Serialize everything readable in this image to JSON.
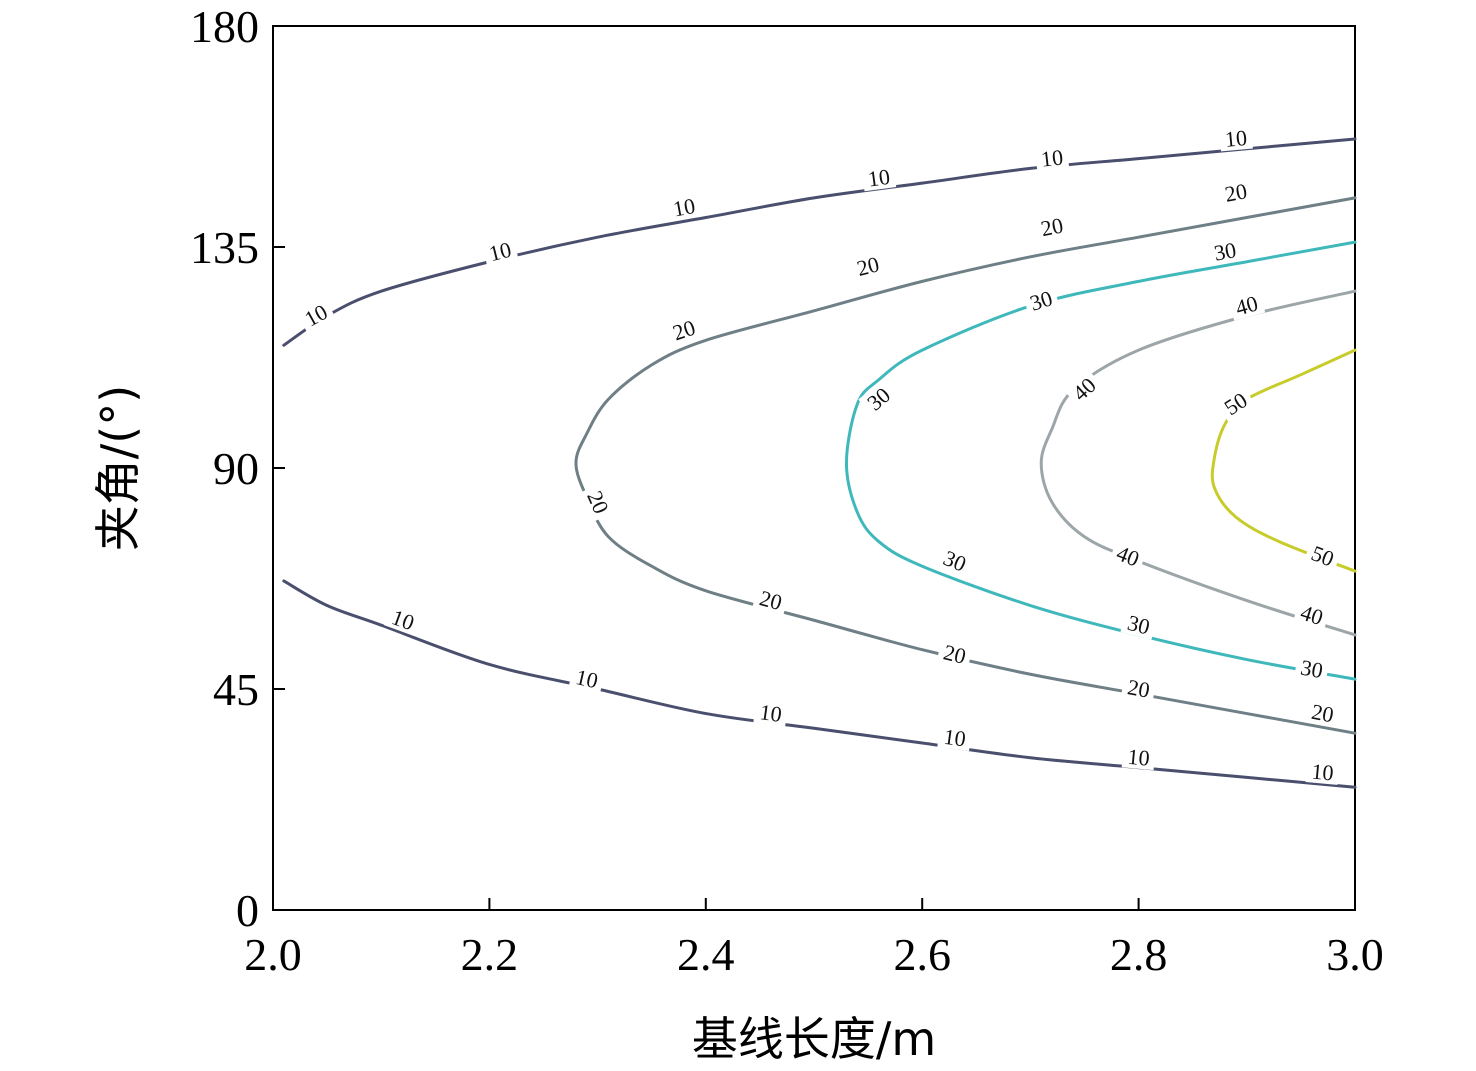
{
  "chart_data": {
    "type": "contour",
    "xlabel": "基线长度/m",
    "ylabel": "夹角/(°)",
    "xlim": [
      2.0,
      3.0
    ],
    "ylim": [
      0,
      180
    ],
    "x_ticks": [
      "2.0",
      "2.2",
      "2.4",
      "2.6",
      "2.8",
      "3.0"
    ],
    "y_ticks": [
      "0",
      "45",
      "90",
      "135",
      "180"
    ],
    "grid": false,
    "contours": [
      {
        "level": "10",
        "color": "#4a4f6e",
        "segments": [
          {
            "part": "upper",
            "points": [
              [
                2.01,
                115
              ],
              [
                2.05,
                121
              ],
              [
                2.1,
                126
              ],
              [
                2.2,
                132
              ],
              [
                2.3,
                137
              ],
              [
                2.4,
                141
              ],
              [
                2.5,
                145
              ],
              [
                2.6,
                148
              ],
              [
                2.7,
                151
              ],
              [
                2.8,
                153
              ],
              [
                2.9,
                155
              ],
              [
                3.0,
                157
              ]
            ],
            "labels": [
              [
                2.04,
                121
              ],
              [
                2.21,
                134
              ],
              [
                2.38,
                143
              ],
              [
                2.56,
                149
              ],
              [
                2.72,
                153
              ],
              [
                2.89,
                157
              ]
            ]
          },
          {
            "part": "lower",
            "points": [
              [
                2.01,
                67
              ],
              [
                2.05,
                62
              ],
              [
                2.1,
                58
              ],
              [
                2.2,
                50
              ],
              [
                2.3,
                45
              ],
              [
                2.4,
                40
              ],
              [
                2.5,
                37
              ],
              [
                2.6,
                34
              ],
              [
                2.7,
                31
              ],
              [
                2.8,
                29
              ],
              [
                2.9,
                27
              ],
              [
                3.0,
                25
              ]
            ],
            "labels": [
              [
                2.12,
                59
              ],
              [
                2.29,
                47
              ],
              [
                2.46,
                40
              ],
              [
                2.63,
                35
              ],
              [
                2.8,
                31
              ],
              [
                2.97,
                28
              ]
            ]
          }
        ]
      },
      {
        "level": "20",
        "color": "#6e7f86",
        "segments": [
          {
            "part": "main",
            "points": [
              [
                3.0,
                145
              ],
              [
                2.9,
                141
              ],
              [
                2.8,
                137
              ],
              [
                2.7,
                133
              ],
              [
                2.6,
                128
              ],
              [
                2.5,
                122
              ],
              [
                2.4,
                116
              ],
              [
                2.35,
                111
              ],
              [
                2.31,
                104
              ],
              [
                2.29,
                97
              ],
              [
                2.28,
                91
              ],
              [
                2.29,
                84
              ],
              [
                2.31,
                76
              ],
              [
                2.35,
                70
              ],
              [
                2.4,
                65
              ],
              [
                2.5,
                59
              ],
              [
                2.6,
                53
              ],
              [
                2.7,
                48
              ],
              [
                2.8,
                44
              ],
              [
                2.9,
                40
              ],
              [
                3.0,
                36
              ]
            ],
            "labels": [
              [
                2.89,
                146
              ],
              [
                2.72,
                139
              ],
              [
                2.55,
                131
              ],
              [
                2.38,
                118
              ],
              [
                2.3,
                83
              ],
              [
                2.46,
                63
              ],
              [
                2.63,
                52
              ],
              [
                2.8,
                45
              ],
              [
                2.97,
                40
              ]
            ]
          }
        ]
      },
      {
        "level": "30",
        "color": "#3fb8bb",
        "segments": [
          {
            "part": "main",
            "points": [
              [
                3.0,
                136
              ],
              [
                2.9,
                132
              ],
              [
                2.8,
                128
              ],
              [
                2.7,
                123
              ],
              [
                2.6,
                114
              ],
              [
                2.56,
                108
              ],
              [
                2.54,
                103
              ],
              [
                2.53,
                91
              ],
              [
                2.54,
                81
              ],
              [
                2.56,
                75
              ],
              [
                2.6,
                70
              ],
              [
                2.7,
                62
              ],
              [
                2.8,
                56
              ],
              [
                2.9,
                51
              ],
              [
                3.0,
                47
              ]
            ],
            "labels": [
              [
                2.88,
                134
              ],
              [
                2.71,
                124
              ],
              [
                2.56,
                104
              ],
              [
                2.63,
                71
              ],
              [
                2.8,
                58
              ],
              [
                2.96,
                49
              ]
            ]
          }
        ]
      },
      {
        "level": "40",
        "color": "#9ca5a8",
        "segments": [
          {
            "part": "main",
            "points": [
              [
                3.0,
                126
              ],
              [
                2.9,
                121
              ],
              [
                2.8,
                114
              ],
              [
                2.74,
                106
              ],
              [
                2.72,
                98
              ],
              [
                2.71,
                91
              ],
              [
                2.72,
                83
              ],
              [
                2.75,
                76
              ],
              [
                2.8,
                71
              ],
              [
                2.9,
                63
              ],
              [
                3.0,
                56
              ]
            ],
            "labels": [
              [
                2.9,
                123
              ],
              [
                2.75,
                106
              ],
              [
                2.79,
                72
              ],
              [
                2.96,
                60
              ]
            ]
          }
        ]
      },
      {
        "level": "50",
        "color": "#c8cc2a",
        "segments": [
          {
            "part": "main",
            "points": [
              [
                3.0,
                114
              ],
              [
                2.95,
                109
              ],
              [
                2.9,
                104
              ],
              [
                2.88,
                99
              ],
              [
                2.87,
                92
              ],
              [
                2.87,
                86
              ],
              [
                2.89,
                80
              ],
              [
                2.93,
                75
              ],
              [
                3.0,
                69
              ]
            ],
            "labels": [
              [
                2.89,
                103
              ],
              [
                2.97,
                72
              ]
            ]
          }
        ]
      }
    ]
  }
}
